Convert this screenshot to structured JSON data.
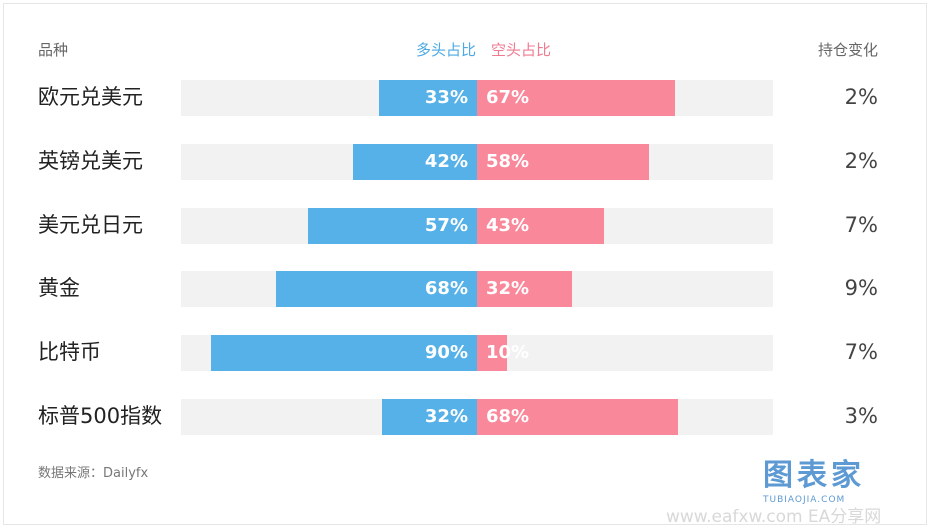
{
  "header": {
    "name_label": "品种",
    "long_label": "多头占比",
    "short_label": "空头占比",
    "change_label": "持仓变化"
  },
  "chart_data": {
    "type": "bar",
    "categories": [
      "欧元兑美元",
      "英镑兑美元",
      "美元兑日元",
      "黄金",
      "比特币",
      "标普500指数"
    ],
    "series": [
      {
        "name": "多头占比",
        "values": [
          33,
          42,
          57,
          68,
          90,
          32
        ],
        "color": "#56b1e8"
      },
      {
        "name": "空头占比",
        "values": [
          67,
          58,
          43,
          32,
          10,
          68
        ],
        "color": "#f9889b"
      }
    ],
    "value_labels_long": [
      "33%",
      "42%",
      "57%",
      "68%",
      "90%",
      "32%"
    ],
    "value_labels_short": [
      "67%",
      "58%",
      "43%",
      "32%",
      "10%",
      "68%"
    ],
    "position_change": [
      "2%",
      "2%",
      "7%",
      "9%",
      "7%",
      "3%"
    ],
    "xlim": [
      -100,
      100
    ],
    "legend": "top-center",
    "grid": false
  },
  "footer": {
    "source": "数据来源：Dailyfx"
  },
  "logo": {
    "text": "图表家",
    "subtext": "TUBIAOJIA.COM"
  },
  "watermark": "www.eafxw.com   EA分享网"
}
